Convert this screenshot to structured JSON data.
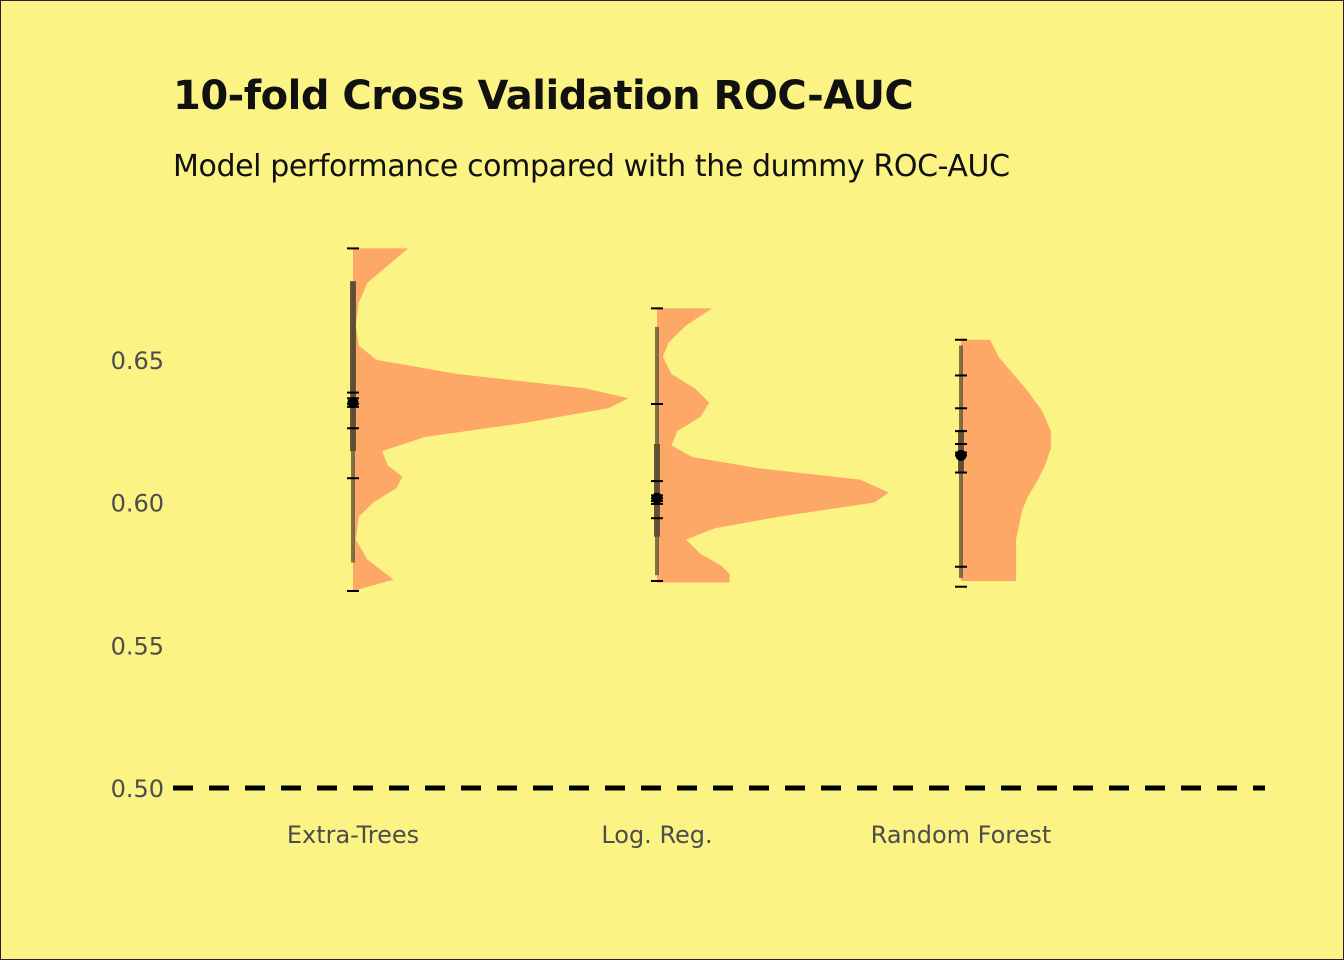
{
  "chart_data": {
    "type": "violin",
    "title": "10-fold Cross Validation ROC-AUC",
    "subtitle": "Model performance compared with the dummy ROC-AUC",
    "xlabel": "",
    "ylabel": "",
    "categories": [
      "Extra-Trees",
      "Log. Reg.",
      "Random Forest"
    ],
    "ylim": [
      0.48,
      0.695
    ],
    "yticks": [
      0.5,
      0.55,
      0.6,
      0.65
    ],
    "ytick_labels": [
      "0.50",
      "0.55",
      "0.60",
      "0.65"
    ],
    "grid": false,
    "baseline": {
      "value": 0.5,
      "style": "dashed",
      "color": "#000000"
    },
    "colors": {
      "background": "#fbf384",
      "violin": "#fda866",
      "points": "#000000"
    },
    "series": [
      {
        "name": "Extra-Trees",
        "values": [
          0.689,
          0.6385,
          0.6365,
          0.6345,
          0.6335,
          0.626,
          0.6085,
          0.569
        ],
        "mean": 0.635,
        "q1": 0.618,
        "q3": 0.6775,
        "whisker": [
          0.579,
          0.6775
        ],
        "density": [
          [
            0.569,
            0.0
          ],
          [
            0.573,
            0.14
          ],
          [
            0.58,
            0.05
          ],
          [
            0.587,
            0.01
          ],
          [
            0.595,
            0.02
          ],
          [
            0.6,
            0.07
          ],
          [
            0.605,
            0.15
          ],
          [
            0.609,
            0.17
          ],
          [
            0.613,
            0.12
          ],
          [
            0.618,
            0.1
          ],
          [
            0.623,
            0.25
          ],
          [
            0.628,
            0.6
          ],
          [
            0.633,
            0.88
          ],
          [
            0.6365,
            0.95
          ],
          [
            0.64,
            0.8
          ],
          [
            0.645,
            0.36
          ],
          [
            0.65,
            0.08
          ],
          [
            0.655,
            0.02
          ],
          [
            0.662,
            0.01
          ],
          [
            0.67,
            0.02
          ],
          [
            0.677,
            0.05
          ],
          [
            0.683,
            0.12
          ],
          [
            0.689,
            0.19
          ]
        ]
      },
      {
        "name": "Log. Reg.",
        "values": [
          0.668,
          0.6345,
          0.6075,
          0.6025,
          0.6015,
          0.6005,
          0.5995,
          0.5945,
          0.5725
        ],
        "mean": 0.6015,
        "q1": 0.588,
        "q3": 0.6205,
        "whisker": [
          0.5745,
          0.6615
        ],
        "density": [
          [
            0.572,
            0.25
          ],
          [
            0.575,
            0.25
          ],
          [
            0.578,
            0.22
          ],
          [
            0.582,
            0.15
          ],
          [
            0.587,
            0.1
          ],
          [
            0.591,
            0.2
          ],
          [
            0.595,
            0.42
          ],
          [
            0.6,
            0.75
          ],
          [
            0.6035,
            0.8
          ],
          [
            0.608,
            0.7
          ],
          [
            0.612,
            0.35
          ],
          [
            0.616,
            0.12
          ],
          [
            0.62,
            0.05
          ],
          [
            0.625,
            0.07
          ],
          [
            0.63,
            0.15
          ],
          [
            0.635,
            0.18
          ],
          [
            0.64,
            0.13
          ],
          [
            0.645,
            0.05
          ],
          [
            0.651,
            0.02
          ],
          [
            0.656,
            0.04
          ],
          [
            0.662,
            0.1
          ],
          [
            0.668,
            0.19
          ]
        ]
      },
      {
        "name": "Random Forest",
        "values": [
          0.657,
          0.6445,
          0.633,
          0.625,
          0.6205,
          0.6175,
          0.6165,
          0.6105,
          0.5775,
          0.5705
        ],
        "mean": 0.6165,
        "q1": 0.6105,
        "q3": 0.6255,
        "whisker": [
          0.5735,
          0.655
        ],
        "density": [
          [
            0.5725,
            0.19
          ],
          [
            0.577,
            0.19
          ],
          [
            0.582,
            0.19
          ],
          [
            0.587,
            0.19
          ],
          [
            0.592,
            0.2
          ],
          [
            0.597,
            0.21
          ],
          [
            0.602,
            0.23
          ],
          [
            0.607,
            0.26
          ],
          [
            0.613,
            0.29
          ],
          [
            0.619,
            0.31
          ],
          [
            0.625,
            0.31
          ],
          [
            0.632,
            0.28
          ],
          [
            0.639,
            0.23
          ],
          [
            0.645,
            0.18
          ],
          [
            0.651,
            0.13
          ],
          [
            0.657,
            0.1
          ]
        ]
      }
    ]
  }
}
